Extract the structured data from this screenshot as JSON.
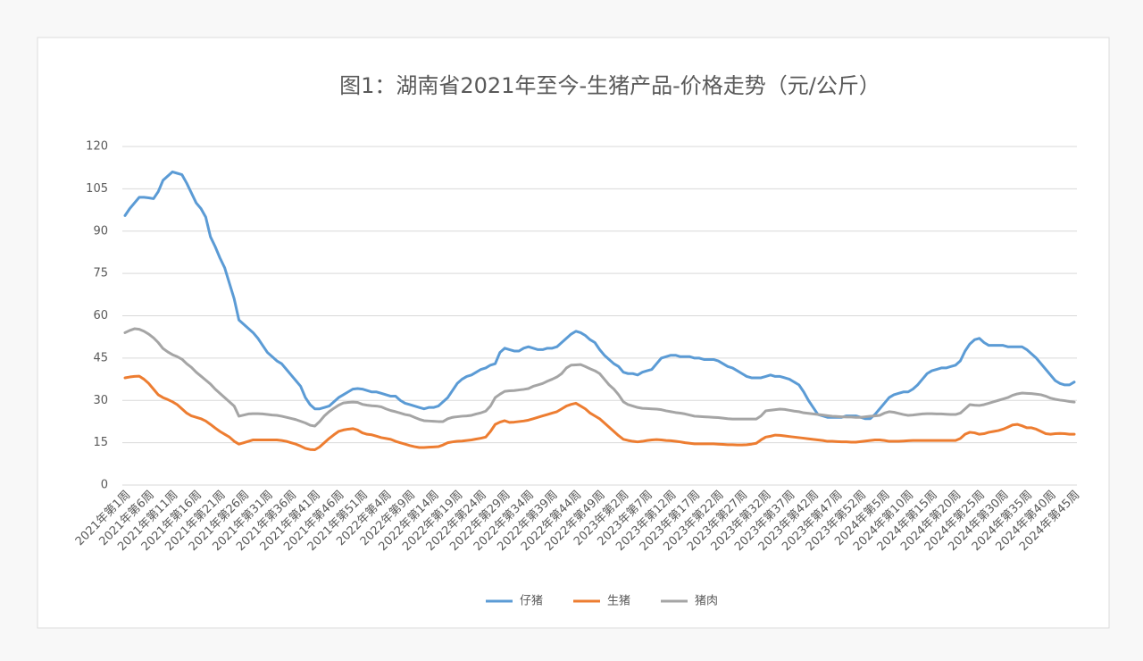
{
  "chart_data": {
    "type": "line",
    "title": "图1：湖南省2021年至今-生猪产品-价格走势（元/公斤）",
    "legend": "bottom",
    "grid": true,
    "ylim": [
      0,
      120
    ],
    "yticks": [
      0,
      15,
      30,
      45,
      60,
      75,
      90,
      105,
      120
    ],
    "categories": [
      "2021年第1周",
      null,
      null,
      null,
      null,
      "2021年第6周",
      null,
      null,
      null,
      null,
      "2021年第11周",
      null,
      null,
      null,
      null,
      "2021年第16周",
      null,
      null,
      null,
      null,
      "2021年第21周",
      null,
      null,
      null,
      null,
      "2021年第26周",
      null,
      null,
      null,
      null,
      "2021年第31周",
      null,
      null,
      null,
      null,
      "2021年第36周",
      null,
      null,
      null,
      null,
      "2021年第41周",
      null,
      null,
      null,
      null,
      "2021年第46周",
      null,
      null,
      null,
      null,
      "2021年第51周",
      null,
      null,
      null,
      null,
      "2022年第4周",
      null,
      null,
      null,
      null,
      "2022年第9周",
      null,
      null,
      null,
      null,
      "2022年第14周",
      null,
      null,
      null,
      null,
      "2022年第19周",
      null,
      null,
      null,
      null,
      "2022年第24周",
      null,
      null,
      null,
      null,
      "2022年第29周",
      null,
      null,
      null,
      null,
      "2022年第34周",
      null,
      null,
      null,
      null,
      "2022年第39周",
      null,
      null,
      null,
      null,
      "2022年第44周",
      null,
      null,
      null,
      null,
      "2022年第49周",
      null,
      null,
      null,
      null,
      "2023年第2周",
      null,
      null,
      null,
      null,
      "2023年第7周",
      null,
      null,
      null,
      null,
      "2023年第12周",
      null,
      null,
      null,
      null,
      "2023年第17周",
      null,
      null,
      null,
      null,
      "2023年第22周",
      null,
      null,
      null,
      null,
      "2023年第27周",
      null,
      null,
      null,
      null,
      "2023年第32周",
      null,
      null,
      null,
      null,
      "2023年第37周",
      null,
      null,
      null,
      null,
      "2023年第42周",
      null,
      null,
      null,
      null,
      "2023年第47周",
      null,
      null,
      null,
      null,
      "2023年第52周",
      null,
      null,
      null,
      null,
      "2024年第5周",
      null,
      null,
      null,
      null,
      "2024年第10周",
      null,
      null,
      null,
      null,
      "2024年第15周",
      null,
      null,
      null,
      null,
      "2024年第20周",
      null,
      null,
      null,
      null,
      "2024年第25周",
      null,
      null,
      null,
      null,
      "2024年第30周",
      null,
      null,
      null,
      null,
      "2024年第35周",
      null,
      null,
      null,
      null,
      "2024年第40周",
      null,
      null,
      null,
      null,
      "2024年第45周"
    ],
    "series": [
      {
        "name": "仔猪",
        "color": "#5b9bd5",
        "values": [
          95.5,
          98,
          100,
          102,
          102,
          101.8,
          101.5,
          104,
          108,
          109.5,
          111,
          110.5,
          110,
          107,
          103.5,
          100,
          98,
          95,
          88,
          84.5,
          80.5,
          77,
          71.5,
          66,
          58.5,
          57,
          55.5,
          54,
          52,
          49.5,
          47,
          45.5,
          44,
          43,
          41,
          39,
          37,
          35,
          31,
          28.5,
          27,
          27,
          27.5,
          28,
          29.5,
          31,
          32,
          33,
          34,
          34.2,
          34,
          33.5,
          33,
          33,
          32.5,
          32,
          31.5,
          31.5,
          30,
          29,
          28.5,
          28,
          27.5,
          27,
          27.5,
          27.5,
          28,
          29.5,
          31,
          33.5,
          36,
          37.5,
          38.5,
          39,
          40,
          41,
          41.5,
          42.5,
          43,
          47,
          48.5,
          48,
          47.5,
          47.5,
          48.5,
          49,
          48.5,
          48,
          48,
          48.5,
          48.5,
          49,
          50.5,
          52,
          53.5,
          54.5,
          54,
          53,
          51.5,
          50.5,
          48,
          46,
          44.5,
          43,
          42,
          40,
          39.5,
          39.5,
          39,
          40,
          40.5,
          41,
          43,
          45,
          45.5,
          46,
          46,
          45.5,
          45.5,
          45.5,
          45,
          45,
          44.5,
          44.5,
          44.5,
          44,
          43,
          42,
          41.5,
          40.5,
          39.5,
          38.5,
          38,
          38,
          38,
          38.5,
          39,
          38.5,
          38.5,
          38,
          37.5,
          36.5,
          35.5,
          33,
          30,
          27.5,
          25,
          24.5,
          24,
          24,
          24,
          24,
          24.5,
          24.5,
          24.5,
          24,
          23.5,
          23.5,
          25,
          27,
          29,
          31,
          32,
          32.5,
          33,
          33,
          34,
          35.5,
          37.5,
          39.5,
          40.5,
          41,
          41.5,
          41.5,
          42,
          42.5,
          44,
          47.5,
          50,
          51.5,
          52,
          50.5,
          49.5,
          49.5,
          49.5,
          49.5,
          49,
          49,
          49,
          49,
          48,
          46.5,
          45,
          43,
          41,
          39,
          37,
          36,
          35.5,
          35.5,
          36.5
        ]
      },
      {
        "name": "生猪",
        "color": "#ed7d31",
        "values": [
          38,
          38.3,
          38.5,
          38.6,
          37.5,
          36,
          34,
          32,
          31,
          30.3,
          29.5,
          28.5,
          27,
          25.5,
          24.5,
          24,
          23.5,
          22.7,
          21.5,
          20.2,
          19,
          18,
          17,
          15.5,
          14.5,
          15,
          15.5,
          16,
          16,
          16,
          16,
          16,
          16,
          15.8,
          15.5,
          15,
          14.5,
          13.8,
          13,
          12.6,
          12.5,
          13.5,
          15,
          16.5,
          17.8,
          19,
          19.5,
          19.8,
          20,
          19.5,
          18.5,
          18,
          17.8,
          17.3,
          16.8,
          16.5,
          16.2,
          15.5,
          15,
          14.5,
          14,
          13.6,
          13.3,
          13.3,
          13.4,
          13.5,
          13.6,
          14.2,
          15,
          15.3,
          15.5,
          15.6,
          15.8,
          16,
          16.3,
          16.6,
          17,
          19,
          21.5,
          22.3,
          22.8,
          22.2,
          22.3,
          22.5,
          22.7,
          23,
          23.5,
          24,
          24.5,
          25,
          25.5,
          26,
          27,
          28,
          28.6,
          29,
          28,
          27,
          25.5,
          24.5,
          23.5,
          22,
          20.5,
          19,
          17.5,
          16.2,
          15.8,
          15.5,
          15.3,
          15.5,
          15.8,
          16,
          16.1,
          16,
          15.8,
          15.7,
          15.5,
          15.3,
          15,
          14.8,
          14.6,
          14.6,
          14.6,
          14.6,
          14.6,
          14.5,
          14.4,
          14.3,
          14.3,
          14.2,
          14.2,
          14.3,
          14.5,
          14.8,
          16,
          17,
          17.3,
          17.7,
          17.6,
          17.4,
          17.2,
          17,
          16.8,
          16.6,
          16.4,
          16.2,
          16,
          15.8,
          15.5,
          15.5,
          15.4,
          15.3,
          15.3,
          15.2,
          15.2,
          15.4,
          15.6,
          15.8,
          16,
          16,
          15.8,
          15.5,
          15.5,
          15.5,
          15.6,
          15.7,
          15.8,
          15.8,
          15.8,
          15.8,
          15.8,
          15.8,
          15.8,
          15.8,
          15.8,
          15.8,
          16.5,
          18,
          18.7,
          18.5,
          18,
          18.2,
          18.7,
          19,
          19.3,
          19.8,
          20.5,
          21.3,
          21.5,
          21,
          20.3,
          20.3,
          19.8,
          19,
          18.2,
          18,
          18.2,
          18.3,
          18.2,
          18,
          18
        ]
      },
      {
        "name": "猪肉",
        "color": "#a5a5a5",
        "values": [
          54,
          54.8,
          55.4,
          55.2,
          54.5,
          53.5,
          52.2,
          50.5,
          48.4,
          47.2,
          46.2,
          45.5,
          44.6,
          43,
          41.7,
          40,
          38.6,
          37.2,
          35.8,
          34,
          32.5,
          31,
          29.5,
          28,
          24.4,
          24.8,
          25.2,
          25.3,
          25.3,
          25.2,
          25,
          24.8,
          24.7,
          24.4,
          24,
          23.6,
          23.2,
          22.6,
          22,
          21.2,
          20.9,
          22.5,
          24.5,
          26,
          27.2,
          28.3,
          29.1,
          29.3,
          29.4,
          29.3,
          28.6,
          28.3,
          28.1,
          28,
          27.7,
          27,
          26.4,
          26,
          25.5,
          25,
          24.7,
          24,
          23.3,
          22.8,
          22.7,
          22.6,
          22.5,
          22.5,
          23.5,
          24,
          24.2,
          24.4,
          24.5,
          24.7,
          25.2,
          25.6,
          26.2,
          28,
          31,
          32.2,
          33.2,
          33.4,
          33.5,
          33.7,
          33.9,
          34.2,
          35,
          35.5,
          36,
          36.8,
          37.5,
          38.3,
          39.5,
          41.5,
          42.5,
          42.6,
          42.7,
          42,
          41.2,
          40.5,
          39.5,
          37.5,
          35.5,
          34,
          32,
          29.5,
          28.5,
          28,
          27.5,
          27.2,
          27.1,
          27,
          26.9,
          26.7,
          26.3,
          26,
          25.7,
          25.5,
          25.2,
          24.8,
          24.4,
          24.3,
          24.2,
          24.1,
          24,
          23.9,
          23.7,
          23.5,
          23.4,
          23.4,
          23.4,
          23.4,
          23.4,
          23.4,
          24.5,
          26.3,
          26.5,
          26.7,
          26.9,
          26.8,
          26.5,
          26.2,
          26,
          25.6,
          25.4,
          25.2,
          25,
          24.8,
          24.6,
          24.4,
          24.3,
          24.2,
          24.1,
          24.1,
          24,
          24,
          24.2,
          24.4,
          24.5,
          24.7,
          25.5,
          26,
          25.8,
          25.4,
          25,
          24.7,
          24.8,
          25,
          25.2,
          25.3,
          25.3,
          25.2,
          25.2,
          25.1,
          25,
          25,
          25.5,
          27,
          28.5,
          28.3,
          28.2,
          28.5,
          29,
          29.5,
          30,
          30.5,
          31,
          31.8,
          32.3,
          32.6,
          32.5,
          32.4,
          32.2,
          32,
          31.5,
          30.8,
          30.4,
          30.1,
          29.9,
          29.6,
          29.4
        ]
      }
    ]
  }
}
